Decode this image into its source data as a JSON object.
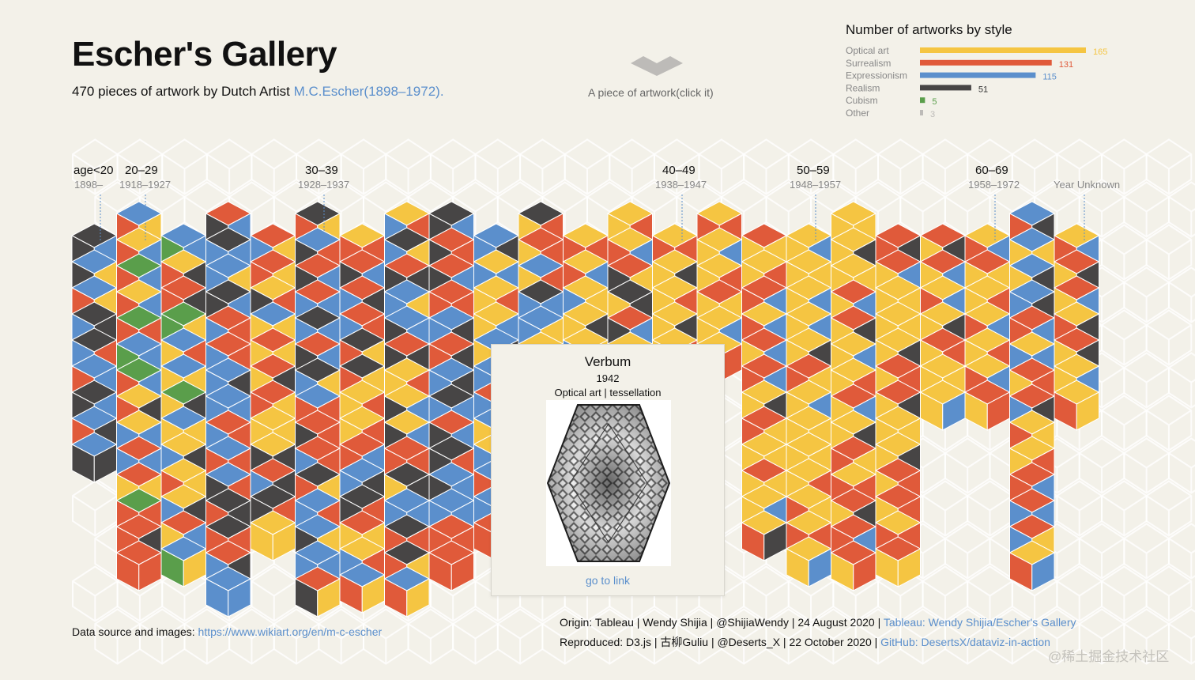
{
  "header": {
    "title": "Escher's Gallery",
    "subtitle_prefix": "470 pieces of artwork by Dutch Artist ",
    "subtitle_link": "M.C.Escher(1898–1972)."
  },
  "legend": {
    "caption": "A piece of artwork(click it)"
  },
  "colors": {
    "optical": "#f5c542",
    "surrealism": "#e05a3a",
    "expressionism": "#5b8fcc",
    "realism": "#474545",
    "cubism": "#5a9e4b",
    "other": "#bdbbb8",
    "background": "#f3f1e9"
  },
  "tooltip": {
    "title": "Verbum",
    "year": "1942",
    "style_line": "Optical art | tessellation",
    "link": "go to link"
  },
  "footer": {
    "source_label": "Data source and images: ",
    "source_link": "https://www.wikiart.org/en/m-c-escher",
    "origin_text": "Origin: Tableau | Wendy Shijia | @ShijiaWendy | 24 August 2020 | ",
    "origin_link": "Tableau: Wendy Shijia/Escher's Gallery",
    "reproduced_text": "Reproduced: D3.js | 古柳Guliu | @Deserts_X | 22 October 2020 | ",
    "reproduced_link": "GitHub: DesertsX/dataviz-in-action"
  },
  "watermark": "@稀土掘金技术社区",
  "chart_data": [
    {
      "type": "bar",
      "title": "Number of artworks by style",
      "categories": [
        "Optical art",
        "Surrealism",
        "Expressionism",
        "Realism",
        "Cubism",
        "Other"
      ],
      "values": [
        165,
        131,
        115,
        51,
        5,
        3
      ],
      "colors": [
        "#f5c542",
        "#e05a3a",
        "#5b8fcc",
        "#474545",
        "#5a9e4b",
        "#bdbbb8"
      ]
    },
    {
      "type": "heatmap",
      "title": "Escher's Gallery",
      "total": 470,
      "age_groups": [
        {
          "label": "age<20",
          "range": "1898–"
        },
        {
          "label": "20–29",
          "range": "1918–1927"
        },
        {
          "label": "30–39",
          "range": "1928–1937"
        },
        {
          "label": "40–49",
          "range": "1938–1947"
        },
        {
          "label": "50–59",
          "range": "1948–1957"
        },
        {
          "label": "60–69",
          "range": "1958–1972"
        },
        {
          "label": "",
          "range": "Year Unknown"
        }
      ]
    }
  ]
}
